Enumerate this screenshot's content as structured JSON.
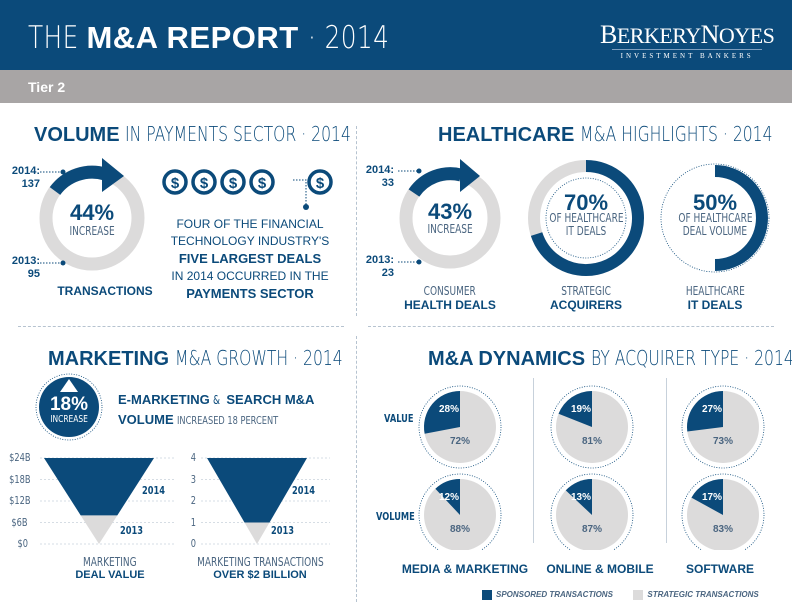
{
  "header": {
    "title_prefix": "THE",
    "title_bold": "M&A REPORT",
    "title_suffix": "· 2014",
    "logo_name_b": "B",
    "logo_name_rest1": "ERKERY",
    "logo_name_n": "N",
    "logo_name_rest2": "OYES",
    "logo_sub": "INVESTMENT BANKERS",
    "tier": "Tier 2"
  },
  "colors": {
    "primary": "#0b4a7a",
    "gray": "#dcdbdb",
    "tier_bar": "#a8a5a5"
  },
  "payments": {
    "title_bold": "VOLUME",
    "title_light": "IN PAYMENTS SECTOR · 2014",
    "y2014_label": "2014:",
    "y2014_value": "137",
    "y2013_label": "2013:",
    "y2013_value": "95",
    "pct": "44%",
    "pct_label": "INCREASE",
    "caption": "TRANSACTIONS",
    "dollar_icon_count": 5,
    "fin_line1": "FOUR OF THE FINANCIAL",
    "fin_line2": "TECHNOLOGY INDUSTRY'S",
    "fin_line3": "FIVE LARGEST DEALS",
    "fin_line4": "IN 2014 OCCURRED IN THE",
    "fin_line5": "PAYMENTS SECTOR"
  },
  "healthcare": {
    "title_bold": "HEALTHCARE",
    "title_light": "M&A HIGHLIGHTS · 2014",
    "y2014_label": "2014:",
    "y2014_value": "33",
    "y2013_label": "2013:",
    "y2013_value": "23",
    "consumer": {
      "pct": "43%",
      "pct_label": "INCREASE",
      "cap1": "CONSUMER",
      "cap2": "HEALTH DEALS"
    },
    "strategic": {
      "pct": "70%",
      "value": 0.7,
      "line1": "OF HEALTHCARE",
      "line2": "IT DEALS",
      "cap1": "STRATEGIC",
      "cap2": "ACQUIRERS"
    },
    "itdeals": {
      "pct": "50%",
      "value": 0.5,
      "line1": "OF HEALTHCARE",
      "line2": "DEAL VOLUME",
      "cap1": "HEALTHCARE",
      "cap2": "IT DEALS"
    }
  },
  "marketing": {
    "title_bold": "MARKETING",
    "title_light": "M&A GROWTH · 2014",
    "badge_pct": "18%",
    "badge_label": "INCREASE",
    "desc_b1": "E-MARKETING",
    "desc_l1": "&",
    "desc_b2": "SEARCH M&A",
    "desc_b3": "VOLUME",
    "desc_l2": "INCREASED 18 PERCENT",
    "deal_value": {
      "ticks": [
        "$24B",
        "$18B",
        "$12B",
        "$6B",
        "$0"
      ],
      "label_2014": "2014",
      "label_2013": "2013",
      "cap1": "MARKETING",
      "cap2": "DEAL VALUE"
    },
    "transactions": {
      "ticks": [
        "4",
        "3",
        "2",
        "1",
        "0"
      ],
      "label_2014": "2014",
      "label_2013": "2013",
      "cap1": "MARKETING TRANSACTIONS",
      "cap2": "OVER $2 BILLION"
    }
  },
  "dynamics": {
    "title_bold": "M&A DYNAMICS",
    "title_light": "BY ACQUIRER TYPE · 2014",
    "row_value": "VALUE",
    "row_volume": "VOLUME",
    "columns": [
      {
        "name": "MEDIA & MARKETING",
        "value": {
          "sponsored": "28%",
          "strategic": "72%"
        },
        "volume": {
          "sponsored": "12%",
          "strategic": "88%"
        }
      },
      {
        "name": "ONLINE & MOBILE",
        "value": {
          "sponsored": "19%",
          "strategic": "81%"
        },
        "volume": {
          "sponsored": "13%",
          "strategic": "87%"
        }
      },
      {
        "name": "SOFTWARE",
        "value": {
          "sponsored": "27%",
          "strategic": "73%"
        },
        "volume": {
          "sponsored": "17%",
          "strategic": "83%"
        }
      }
    ],
    "legend_sponsored": "SPONSORED TRANSACTIONS",
    "legend_strategic": "STRATEGIC TRANSACTIONS"
  },
  "chart_data": [
    {
      "type": "pie",
      "title": "M&A Dynamics by Acquirer Type · 2014",
      "categories": [
        "Media & Marketing",
        "Online & Mobile",
        "Software"
      ],
      "series": [
        {
          "name": "Value - Sponsored",
          "values": [
            28,
            19,
            27
          ]
        },
        {
          "name": "Value - Strategic",
          "values": [
            72,
            81,
            73
          ]
        },
        {
          "name": "Volume - Sponsored",
          "values": [
            12,
            13,
            17
          ]
        },
        {
          "name": "Volume - Strategic",
          "values": [
            88,
            87,
            83
          ]
        }
      ],
      "legend": [
        "Sponsored Transactions",
        "Strategic Transactions"
      ]
    },
    {
      "type": "bar",
      "title": "Marketing Deal Value",
      "categories": [
        "2013",
        "2014"
      ],
      "values": [
        8,
        24
      ],
      "ylabel": "Deal Value ($B)",
      "yticks": [
        "$0",
        "$6B",
        "$12B",
        "$18B",
        "$24B"
      ],
      "ylim": [
        0,
        24
      ]
    },
    {
      "type": "bar",
      "title": "Marketing Transactions Over $2 Billion",
      "categories": [
        "2013",
        "2014"
      ],
      "values": [
        1,
        4
      ],
      "yticks": [
        "0",
        "1",
        "2",
        "3",
        "4"
      ],
      "ylim": [
        0,
        4
      ]
    }
  ]
}
